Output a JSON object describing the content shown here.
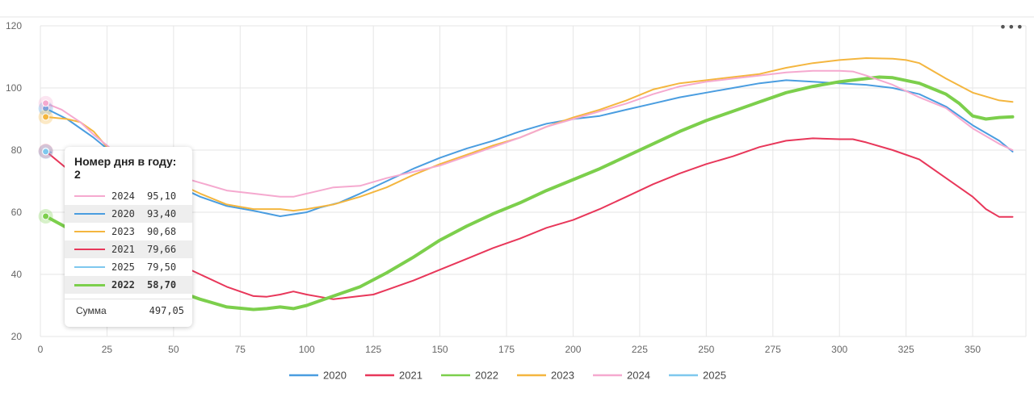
{
  "chart_data": {
    "type": "line",
    "xlim": [
      0,
      370
    ],
    "ylim": [
      20,
      120
    ],
    "x_ticks": [
      0,
      25,
      50,
      75,
      100,
      125,
      150,
      175,
      200,
      225,
      250,
      275,
      300,
      325,
      350
    ],
    "y_ticks": [
      20,
      40,
      60,
      80,
      100,
      120
    ],
    "grid": true,
    "legend_position": "bottom",
    "series": [
      {
        "name": "2020",
        "color": "#4a9de0",
        "width": 2,
        "points": [
          [
            2,
            93.4
          ],
          [
            10,
            90
          ],
          [
            20,
            84
          ],
          [
            30,
            77
          ],
          [
            40,
            72
          ],
          [
            50,
            69
          ],
          [
            60,
            65
          ],
          [
            70,
            62
          ],
          [
            80,
            60.5
          ],
          [
            90,
            58.7
          ],
          [
            100,
            60
          ],
          [
            105,
            61.5
          ],
          [
            112,
            63
          ],
          [
            120,
            66
          ],
          [
            130,
            70
          ],
          [
            140,
            74
          ],
          [
            150,
            77.5
          ],
          [
            160,
            80.5
          ],
          [
            170,
            83
          ],
          [
            180,
            86
          ],
          [
            190,
            88.5
          ],
          [
            200,
            90
          ],
          [
            210,
            91
          ],
          [
            220,
            93
          ],
          [
            230,
            95
          ],
          [
            240,
            97
          ],
          [
            250,
            98.5
          ],
          [
            260,
            100
          ],
          [
            270,
            101.5
          ],
          [
            280,
            102.5
          ],
          [
            290,
            102
          ],
          [
            300,
            101.5
          ],
          [
            310,
            101
          ],
          [
            320,
            100
          ],
          [
            330,
            98
          ],
          [
            340,
            94
          ],
          [
            350,
            88
          ],
          [
            360,
            83
          ],
          [
            365,
            79.5
          ]
        ]
      },
      {
        "name": "2021",
        "color": "#e8375a",
        "width": 2,
        "points": [
          [
            2,
            79.66
          ],
          [
            10,
            74
          ],
          [
            20,
            66
          ],
          [
            30,
            58
          ],
          [
            40,
            50
          ],
          [
            50,
            44
          ],
          [
            60,
            40
          ],
          [
            70,
            36
          ],
          [
            80,
            33
          ],
          [
            85,
            32.8
          ],
          [
            90,
            33.5
          ],
          [
            95,
            34.5
          ],
          [
            100,
            33.5
          ],
          [
            110,
            32
          ],
          [
            120,
            33
          ],
          [
            125,
            33.5
          ],
          [
            130,
            35
          ],
          [
            140,
            38
          ],
          [
            150,
            41.5
          ],
          [
            160,
            45
          ],
          [
            170,
            48.5
          ],
          [
            180,
            51.5
          ],
          [
            190,
            55
          ],
          [
            200,
            57.5
          ],
          [
            210,
            61
          ],
          [
            220,
            65
          ],
          [
            230,
            69
          ],
          [
            240,
            72.5
          ],
          [
            250,
            75.5
          ],
          [
            260,
            78
          ],
          [
            270,
            81
          ],
          [
            280,
            83
          ],
          [
            290,
            83.8
          ],
          [
            300,
            83.5
          ],
          [
            305,
            83.5
          ],
          [
            310,
            82.5
          ],
          [
            320,
            80
          ],
          [
            330,
            77
          ],
          [
            340,
            71
          ],
          [
            350,
            65
          ],
          [
            355,
            61
          ],
          [
            360,
            58.5
          ],
          [
            365,
            58.5
          ]
        ]
      },
      {
        "name": "2022",
        "color": "#7ccf4c",
        "width": 4,
        "points": [
          [
            2,
            58.7
          ],
          [
            10,
            55
          ],
          [
            20,
            49
          ],
          [
            30,
            43
          ],
          [
            40,
            38
          ],
          [
            50,
            35
          ],
          [
            60,
            32
          ],
          [
            70,
            29.5
          ],
          [
            80,
            28.7
          ],
          [
            85,
            29
          ],
          [
            90,
            29.5
          ],
          [
            95,
            29
          ],
          [
            100,
            30
          ],
          [
            110,
            33
          ],
          [
            120,
            36
          ],
          [
            130,
            40.5
          ],
          [
            140,
            45.5
          ],
          [
            150,
            51
          ],
          [
            160,
            55.5
          ],
          [
            170,
            59.5
          ],
          [
            180,
            63
          ],
          [
            190,
            67
          ],
          [
            200,
            70.5
          ],
          [
            210,
            74
          ],
          [
            220,
            78
          ],
          [
            230,
            82
          ],
          [
            240,
            86
          ],
          [
            250,
            89.5
          ],
          [
            260,
            92.5
          ],
          [
            270,
            95.5
          ],
          [
            280,
            98.5
          ],
          [
            290,
            100.5
          ],
          [
            300,
            102
          ],
          [
            310,
            103
          ],
          [
            315,
            103.5
          ],
          [
            320,
            103.3
          ],
          [
            330,
            101.5
          ],
          [
            340,
            98
          ],
          [
            345,
            95
          ],
          [
            350,
            91
          ],
          [
            355,
            90
          ],
          [
            360,
            90.5
          ],
          [
            365,
            90.7
          ]
        ]
      },
      {
        "name": "2023",
        "color": "#f4b63f",
        "width": 2,
        "points": [
          [
            2,
            90.68
          ],
          [
            10,
            90
          ],
          [
            15,
            89
          ],
          [
            20,
            86
          ],
          [
            25,
            81
          ],
          [
            30,
            77
          ],
          [
            40,
            73
          ],
          [
            50,
            70
          ],
          [
            60,
            66
          ],
          [
            70,
            62.5
          ],
          [
            80,
            61
          ],
          [
            90,
            61
          ],
          [
            95,
            60.5
          ],
          [
            100,
            61
          ],
          [
            110,
            62.5
          ],
          [
            120,
            65
          ],
          [
            130,
            68
          ],
          [
            140,
            72
          ],
          [
            150,
            75.5
          ],
          [
            160,
            78.5
          ],
          [
            170,
            81.5
          ],
          [
            180,
            84
          ],
          [
            190,
            87.5
          ],
          [
            200,
            90.5
          ],
          [
            210,
            93
          ],
          [
            220,
            96
          ],
          [
            230,
            99.5
          ],
          [
            240,
            101.5
          ],
          [
            250,
            102.5
          ],
          [
            260,
            103.5
          ],
          [
            270,
            104.5
          ],
          [
            280,
            106.5
          ],
          [
            290,
            108
          ],
          [
            300,
            109
          ],
          [
            310,
            109.6
          ],
          [
            320,
            109.4
          ],
          [
            325,
            109
          ],
          [
            330,
            108
          ],
          [
            340,
            103
          ],
          [
            350,
            98.5
          ],
          [
            360,
            96
          ],
          [
            365,
            95.5
          ]
        ]
      },
      {
        "name": "2024",
        "color": "#f5a9cf",
        "width": 2,
        "points": [
          [
            2,
            95.1
          ],
          [
            8,
            93
          ],
          [
            15,
            89
          ],
          [
            20,
            85
          ],
          [
            30,
            78
          ],
          [
            40,
            74
          ],
          [
            50,
            72
          ],
          [
            60,
            69.5
          ],
          [
            70,
            67
          ],
          [
            80,
            66
          ],
          [
            90,
            65
          ],
          [
            95,
            65
          ],
          [
            100,
            66
          ],
          [
            110,
            68
          ],
          [
            120,
            68.5
          ],
          [
            130,
            71
          ],
          [
            140,
            73
          ],
          [
            150,
            75
          ],
          [
            160,
            78
          ],
          [
            170,
            81
          ],
          [
            180,
            84
          ],
          [
            190,
            87.5
          ],
          [
            200,
            90
          ],
          [
            210,
            92.5
          ],
          [
            220,
            95
          ],
          [
            230,
            98
          ],
          [
            240,
            100.5
          ],
          [
            250,
            102
          ],
          [
            260,
            103
          ],
          [
            270,
            104
          ],
          [
            280,
            105
          ],
          [
            290,
            105.5
          ],
          [
            300,
            105.5
          ],
          [
            305,
            105.3
          ],
          [
            310,
            104
          ],
          [
            320,
            101
          ],
          [
            330,
            97
          ],
          [
            340,
            93.5
          ],
          [
            350,
            87
          ],
          [
            360,
            82
          ],
          [
            365,
            80
          ]
        ]
      },
      {
        "name": "2025",
        "color": "#7ec8ee",
        "width": 2,
        "points": [
          [
            2,
            79.5
          ],
          [
            4,
            79.3
          ]
        ]
      }
    ],
    "hover": {
      "title": "Номер дня в году: 2",
      "x": 2,
      "rows": [
        {
          "name": "2024",
          "value": "95,10",
          "color": "#f5a9cf",
          "bold": false,
          "shaded": false
        },
        {
          "name": "2020",
          "value": "93,40",
          "color": "#4a9de0",
          "bold": false,
          "shaded": true
        },
        {
          "name": "2023",
          "value": "90,68",
          "color": "#f4b63f",
          "bold": false,
          "shaded": false
        },
        {
          "name": "2021",
          "value": "79,66",
          "color": "#e8375a",
          "bold": false,
          "shaded": true
        },
        {
          "name": "2025",
          "value": "79,50",
          "color": "#7ec8ee",
          "bold": false,
          "shaded": false
        },
        {
          "name": "2022",
          "value": "58,70",
          "color": "#7ccf4c",
          "bold": true,
          "shaded": true
        }
      ],
      "sum_label": "Сумма",
      "sum_value": "497,05"
    }
  },
  "menu": {
    "icon": "more-dots-icon",
    "label": "•••"
  }
}
